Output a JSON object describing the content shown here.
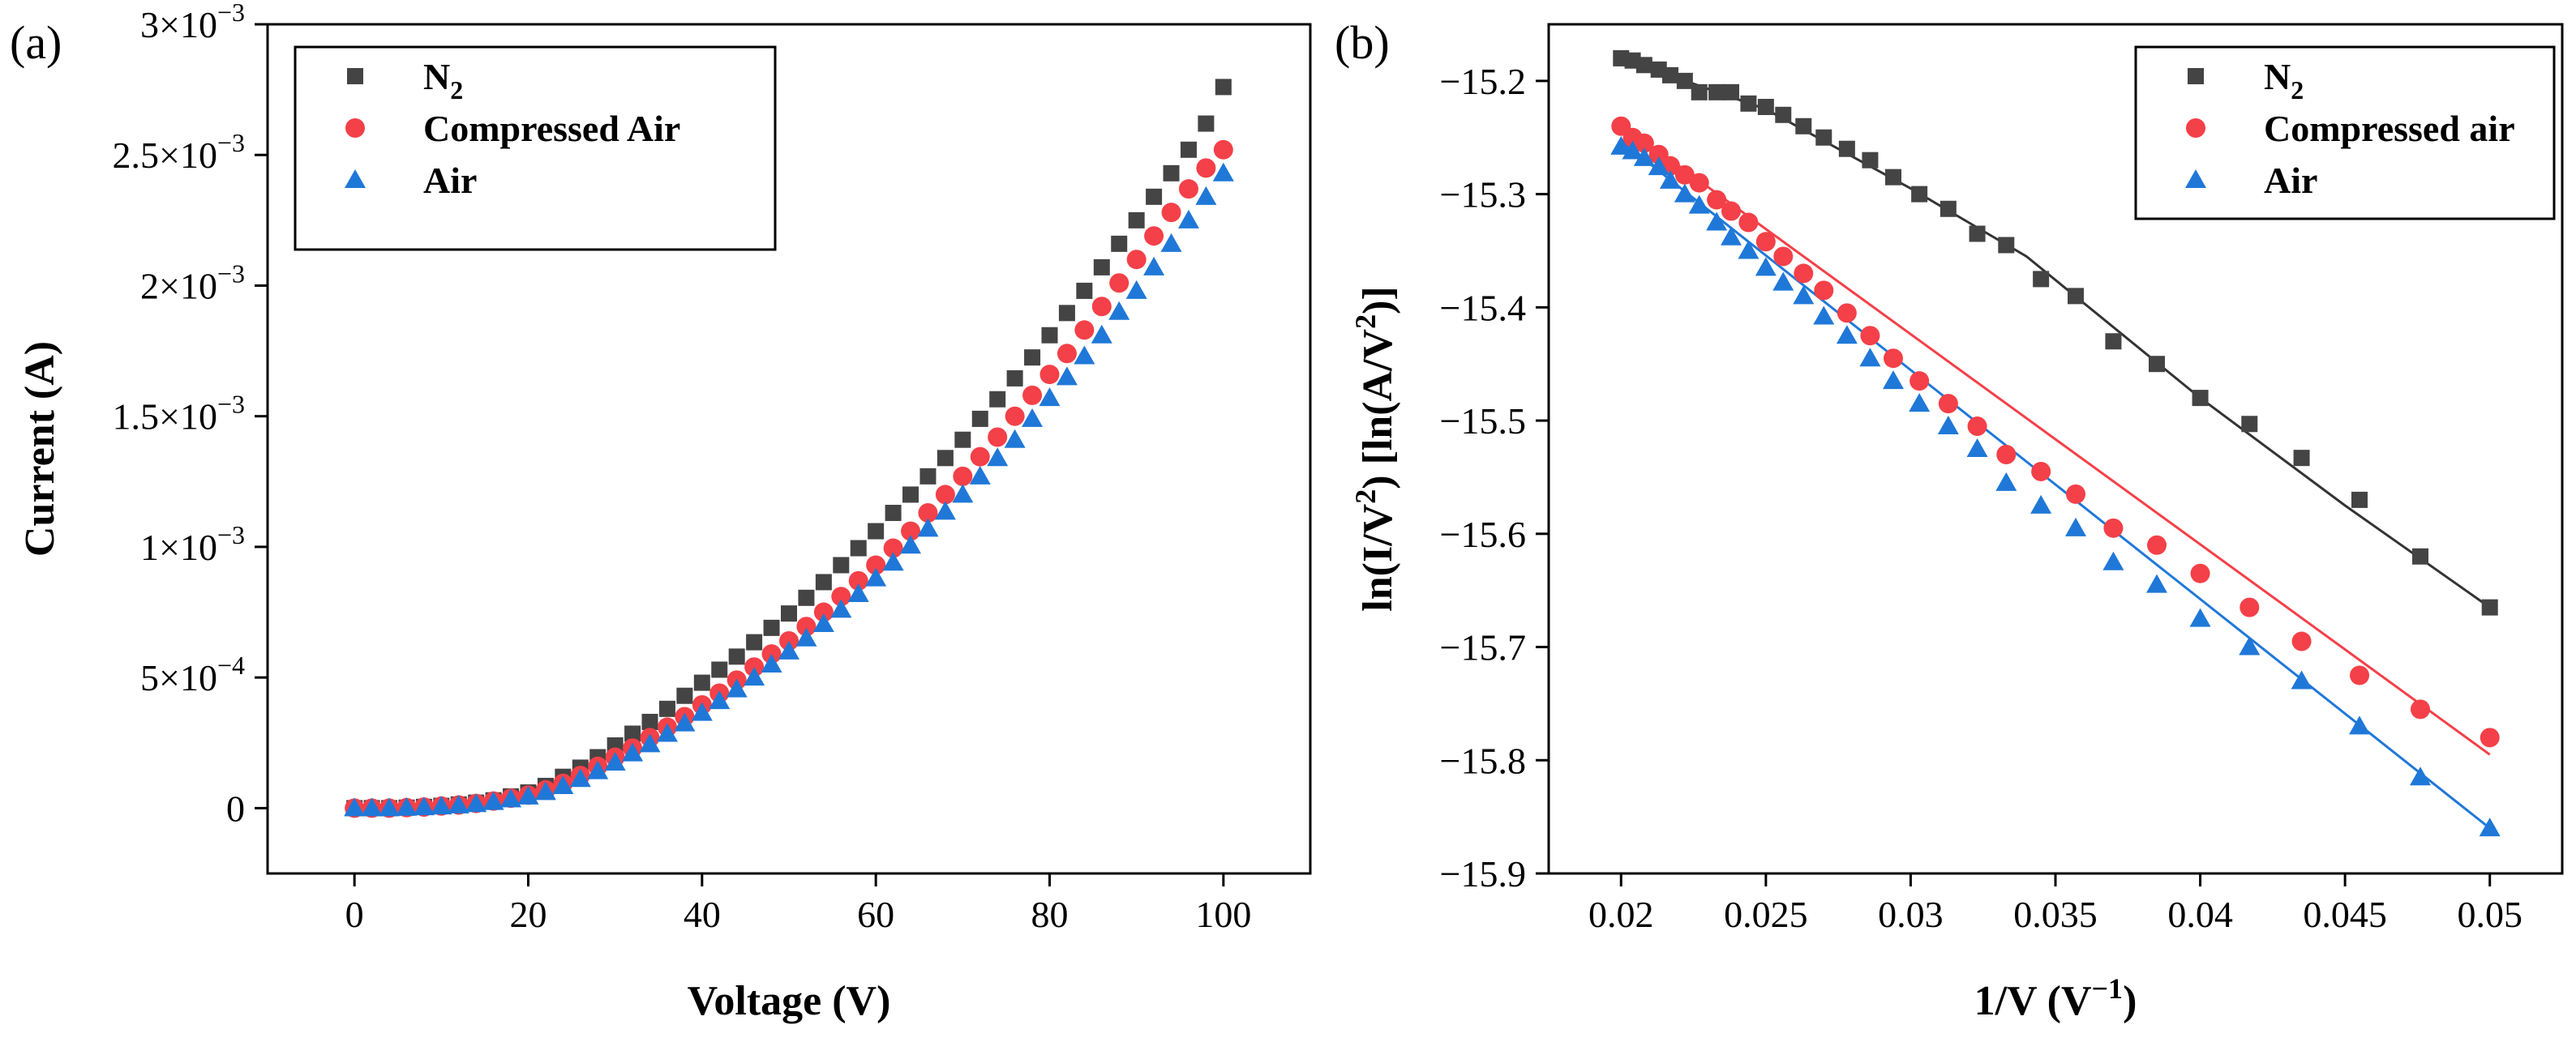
{
  "chart_data": [
    {
      "panel_label": "(a)",
      "type": "scatter",
      "xlabel": "Voltage (V)",
      "ylabel": "Current (A)",
      "xlim": [
        -10,
        110
      ],
      "ylim": [
        -0.00025,
        0.003
      ],
      "xticks": [
        0,
        20,
        40,
        60,
        80,
        100
      ],
      "xtick_labels": [
        "0",
        "20",
        "40",
        "60",
        "80",
        "100"
      ],
      "yticks": [
        0,
        0.0005,
        0.001,
        0.0015,
        0.002,
        0.0025,
        0.003
      ],
      "ytick_labels": [
        {
          "mant": "0",
          "exp": ""
        },
        {
          "mant": "5×10",
          "exp": "−4"
        },
        {
          "mant": "1×10",
          "exp": "−3"
        },
        {
          "mant": "1.5×10",
          "exp": "−3"
        },
        {
          "mant": "2×10",
          "exp": "−3"
        },
        {
          "mant": "2.5×10",
          "exp": "−3"
        },
        {
          "mant": "3×10",
          "exp": "−3"
        }
      ],
      "legend": {
        "position": "top-left"
      },
      "series": [
        {
          "name": "N",
          "name_sub": "2",
          "marker": "square",
          "color": "#444444",
          "x": [
            0,
            2,
            4,
            6,
            8,
            10,
            12,
            14,
            16,
            18,
            20,
            22,
            24,
            26,
            28,
            30,
            32,
            34,
            36,
            38,
            40,
            42,
            44,
            46,
            48,
            50,
            52,
            54,
            56,
            58,
            60,
            62,
            64,
            66,
            68,
            70,
            72,
            74,
            76,
            78,
            80,
            82,
            84,
            86,
            88,
            90,
            92,
            94,
            96,
            98,
            100
          ],
          "y": [
            0.0,
            0.0,
            0.0,
            2e-06,
            5e-06,
            9e-06,
            1.4e-05,
            2.1e-05,
            3e-05,
            4.5e-05,
            6e-05,
            8.5e-05,
            0.00012,
            0.000155,
            0.000195,
            0.00024,
            0.000285,
            0.00033,
            0.00038,
            0.00043,
            0.00048,
            0.00053,
            0.00058,
            0.000635,
            0.00069,
            0.000745,
            0.000805,
            0.000865,
            0.00093,
            0.000995,
            0.00106,
            0.00113,
            0.0012,
            0.00127,
            0.00134,
            0.00141,
            0.00149,
            0.001565,
            0.001645,
            0.001725,
            0.00181,
            0.001895,
            0.00198,
            0.00207,
            0.00216,
            0.00225,
            0.00234,
            0.00243,
            0.00252,
            0.00262,
            0.00276
          ]
        },
        {
          "name": "Compressed Air",
          "marker": "circle",
          "color": "#f44048",
          "x": [
            0,
            2,
            4,
            6,
            8,
            10,
            12,
            14,
            16,
            18,
            20,
            22,
            24,
            26,
            28,
            30,
            32,
            34,
            36,
            38,
            40,
            42,
            44,
            46,
            48,
            50,
            52,
            54,
            56,
            58,
            60,
            62,
            64,
            66,
            68,
            70,
            72,
            74,
            76,
            78,
            80,
            82,
            84,
            86,
            88,
            90,
            92,
            94,
            96,
            98,
            100
          ],
          "y": [
            0.0,
            0.0,
            0.0,
            2e-06,
            4e-06,
            8e-06,
            1.2e-05,
            1.8e-05,
            2.7e-05,
            3.8e-05,
            5e-05,
            7e-05,
            9.5e-05,
            0.000125,
            0.00016,
            0.000195,
            0.00023,
            0.00027,
            0.00031,
            0.00035,
            0.000395,
            0.00044,
            0.00049,
            0.00054,
            0.00059,
            0.00064,
            0.000695,
            0.00075,
            0.00081,
            0.00087,
            0.00093,
            0.000995,
            0.00106,
            0.00113,
            0.0012,
            0.00127,
            0.001345,
            0.00142,
            0.0015,
            0.00158,
            0.00166,
            0.00174,
            0.00183,
            0.00192,
            0.00201,
            0.0021,
            0.00219,
            0.00228,
            0.00237,
            0.00245,
            0.00252
          ]
        },
        {
          "name": "Air",
          "marker": "triangle",
          "color": "#1f78d8",
          "x": [
            0,
            2,
            4,
            6,
            8,
            10,
            12,
            14,
            16,
            18,
            20,
            22,
            24,
            26,
            28,
            30,
            32,
            34,
            36,
            38,
            40,
            42,
            44,
            46,
            48,
            50,
            52,
            54,
            56,
            58,
            60,
            62,
            64,
            66,
            68,
            70,
            72,
            74,
            76,
            78,
            80,
            82,
            84,
            86,
            88,
            90,
            92,
            94,
            96,
            98,
            100
          ],
          "y": [
            0.0,
            0.0,
            0.0,
            2e-06,
            4e-06,
            7e-06,
            1.1e-05,
            1.6e-05,
            2.4e-05,
            3.4e-05,
            4.5e-05,
            6.2e-05,
            8.5e-05,
            0.000112,
            0.000142,
            0.000175,
            0.00021,
            0.000245,
            0.000285,
            0.000325,
            0.000365,
            0.00041,
            0.000455,
            0.0005,
            0.00055,
            0.0006,
            0.00065,
            0.000705,
            0.00076,
            0.00082,
            0.00088,
            0.00094,
            0.001005,
            0.00107,
            0.001135,
            0.0012,
            0.00127,
            0.00134,
            0.00141,
            0.00149,
            0.00157,
            0.00165,
            0.00173,
            0.00181,
            0.0019,
            0.00198,
            0.00207,
            0.00216,
            0.00225,
            0.00234,
            0.00243
          ]
        }
      ]
    },
    {
      "panel_label": "(b)",
      "type": "scatter",
      "xlabel": "1/V (V",
      "xlabel_sup": "−1",
      "xlabel_end": ")",
      "ylabel_parts": [
        {
          "t": "ln(I/V"
        },
        {
          "t": "2",
          "sup": true
        },
        {
          "t": ") [ln(A/V"
        },
        {
          "t": "2",
          "sup": true
        },
        {
          "t": ")]"
        }
      ],
      "xlim": [
        0.0175,
        0.0525
      ],
      "ylim": [
        -15.9,
        -15.15
      ],
      "xticks": [
        0.02,
        0.025,
        0.03,
        0.035,
        0.04,
        0.045,
        0.05
      ],
      "xtick_labels": [
        "0.02",
        "0.025",
        "0.03",
        "0.035",
        "0.04",
        "0.045",
        "0.05"
      ],
      "yticks": [
        -15.2,
        -15.3,
        -15.4,
        -15.5,
        -15.6,
        -15.7,
        -15.8,
        -15.9
      ],
      "ytick_labels": [
        "−15.2",
        "−15.3",
        "−15.4",
        "−15.5",
        "−15.6",
        "−15.7",
        "−15.8",
        "−15.9"
      ],
      "legend": {
        "position": "top-right"
      },
      "series": [
        {
          "name": "N",
          "name_sub": "2",
          "marker": "square",
          "color": "#444444",
          "x": [
            0.02,
            0.0204,
            0.0208,
            0.0213,
            0.0217,
            0.0222,
            0.0227,
            0.0233,
            0.0238,
            0.0244,
            0.025,
            0.0256,
            0.0263,
            0.027,
            0.0278,
            0.0286,
            0.0294,
            0.0303,
            0.0313,
            0.0323,
            0.0333,
            0.0345,
            0.0357,
            0.037,
            0.0385,
            0.04,
            0.0417,
            0.0435,
            0.0455,
            0.0476,
            0.05
          ],
          "y": [
            -15.18,
            -15.182,
            -15.186,
            -15.19,
            -15.195,
            -15.2,
            -15.21,
            -15.21,
            -15.21,
            -15.22,
            -15.223,
            -15.23,
            -15.24,
            -15.25,
            -15.26,
            -15.27,
            -15.285,
            -15.3,
            -15.313,
            -15.335,
            -15.345,
            -15.375,
            -15.39,
            -15.43,
            -15.45,
            -15.48,
            -15.503,
            -15.533,
            -15.57,
            -15.62,
            -15.665
          ],
          "fit_x": [
            0.02,
            0.025,
            0.03,
            0.034,
            0.04,
            0.045,
            0.05
          ],
          "fit_y": [
            -15.18,
            -15.225,
            -15.295,
            -15.355,
            -15.48,
            -15.575,
            -15.665
          ]
        },
        {
          "name": "Compressed air",
          "marker": "circle",
          "color": "#f44048",
          "x": [
            0.02,
            0.0204,
            0.0208,
            0.0213,
            0.0217,
            0.0222,
            0.0227,
            0.0233,
            0.0238,
            0.0244,
            0.025,
            0.0256,
            0.0263,
            0.027,
            0.0278,
            0.0286,
            0.0294,
            0.0303,
            0.0313,
            0.0323,
            0.0333,
            0.0345,
            0.0357,
            0.037,
            0.0385,
            0.04,
            0.0417,
            0.0435,
            0.0455,
            0.0476,
            0.05
          ],
          "y": [
            -15.24,
            -15.25,
            -15.255,
            -15.265,
            -15.275,
            -15.283,
            -15.29,
            -15.305,
            -15.315,
            -15.325,
            -15.342,
            -15.355,
            -15.37,
            -15.385,
            -15.405,
            -15.425,
            -15.445,
            -15.465,
            -15.485,
            -15.505,
            -15.53,
            -15.545,
            -15.565,
            -15.595,
            -15.61,
            -15.635,
            -15.665,
            -15.695,
            -15.725,
            -15.755,
            -15.78
          ],
          "fit_x": [
            0.02,
            0.05
          ],
          "fit_y": [
            -15.238,
            -15.795
          ]
        },
        {
          "name": "Air",
          "marker": "triangle",
          "color": "#1f78d8",
          "x": [
            0.02,
            0.0204,
            0.0208,
            0.0213,
            0.0217,
            0.0222,
            0.0227,
            0.0233,
            0.0238,
            0.0244,
            0.025,
            0.0256,
            0.0263,
            0.027,
            0.0278,
            0.0286,
            0.0294,
            0.0303,
            0.0313,
            0.0323,
            0.0333,
            0.0345,
            0.0357,
            0.037,
            0.0385,
            0.04,
            0.0417,
            0.0435,
            0.0455,
            0.0476,
            0.05
          ],
          "y": [
            -15.258,
            -15.262,
            -15.268,
            -15.276,
            -15.288,
            -15.3,
            -15.31,
            -15.325,
            -15.338,
            -15.35,
            -15.365,
            -15.378,
            -15.39,
            -15.408,
            -15.425,
            -15.445,
            -15.465,
            -15.485,
            -15.505,
            -15.525,
            -15.555,
            -15.575,
            -15.595,
            -15.625,
            -15.645,
            -15.675,
            -15.7,
            -15.73,
            -15.77,
            -15.815,
            -15.86
          ],
          "fit_x": [
            0.02,
            0.05
          ],
          "fit_y": [
            -15.253,
            -15.86
          ]
        }
      ]
    }
  ]
}
